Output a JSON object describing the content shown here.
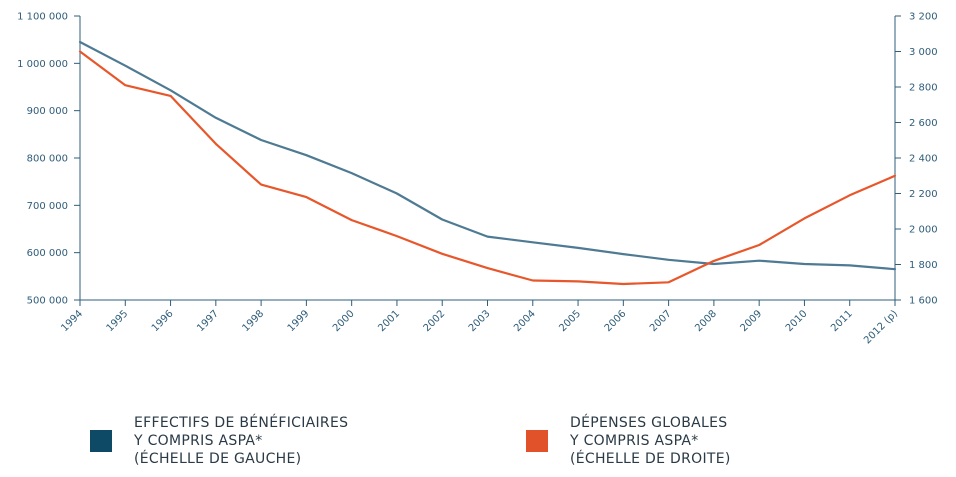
{
  "chart_data": {
    "type": "line",
    "categories": [
      "1994",
      "1995",
      "1996",
      "1997",
      "1998",
      "1999",
      "2000",
      "2001",
      "2002",
      "2003",
      "2004",
      "2005",
      "2006",
      "2007",
      "2008",
      "2009",
      "2010",
      "2011",
      "2012 (p)"
    ],
    "left_axis": {
      "ylim": [
        500000,
        1100000
      ],
      "ticks": [
        500000,
        600000,
        700000,
        800000,
        900000,
        1000000,
        1100000
      ],
      "tick_labels": [
        "500 000",
        "600 000",
        "700 000",
        "800 000",
        "900 000",
        "1 000 000",
        "1 100 000"
      ]
    },
    "right_axis": {
      "ylim": [
        1600,
        3200
      ],
      "ticks": [
        1600,
        1800,
        2000,
        2200,
        2400,
        2600,
        2800,
        3000,
        3200
      ],
      "tick_labels": [
        "1 600",
        "1 800",
        "2 000",
        "2 200",
        "2 400",
        "2 600",
        "2 800",
        "3 000",
        "3 200"
      ]
    },
    "series": [
      {
        "name": "EFFECTIFS DE BÉNÉFICIAIRES Y COMPRIS ASPA* (ÉCHELLE DE GAUCHE)",
        "axis": "left",
        "color": "#4e7a93",
        "values": [
          1045000,
          995000,
          943000,
          885000,
          838000,
          806000,
          768000,
          725000,
          670000,
          634000,
          622000,
          610000,
          597000,
          585000,
          576000,
          583000,
          576000,
          573000,
          565000
        ]
      },
      {
        "name": "DÉPENSES GLOBALES Y COMPRIS ASPA* (ÉCHELLE DE DROITE)",
        "axis": "right",
        "color": "#e8572b",
        "values": [
          3000,
          2810,
          2750,
          2480,
          2250,
          2180,
          2050,
          1960,
          1860,
          1780,
          1710,
          1705,
          1690,
          1700,
          1820,
          1910,
          2060,
          2190,
          2300
        ]
      }
    ],
    "legend_placement": "bottom",
    "grid": false
  },
  "legend": [
    {
      "lines": [
        "EFFECTIFS DE BÉNÉFICIAIRES",
        "Y COMPRIS ASPA*",
        "(ÉCHELLE DE GAUCHE)"
      ],
      "color": "#0e4a66"
    },
    {
      "lines": [
        "DÉPENSES GLOBALES",
        "Y COMPRIS ASPA*",
        "(ÉCHELLE DE DROITE)"
      ],
      "color": "#e1522b"
    }
  ]
}
